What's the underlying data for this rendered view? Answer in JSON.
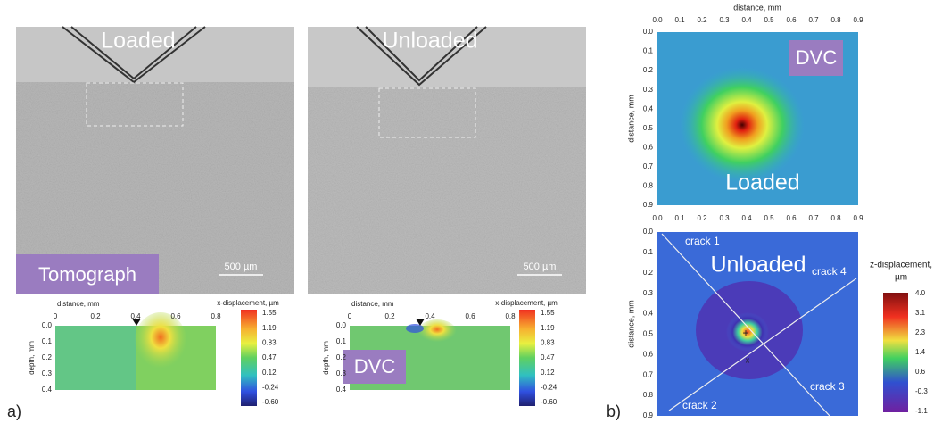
{
  "panel_a": {
    "label": "a)",
    "tomographs": [
      {
        "title": "Loaded",
        "scale_bar": "500 µm"
      },
      {
        "title": "Unloaded",
        "scale_bar": "500 µm"
      }
    ],
    "tomograph_tag": "Tomograph",
    "maps": {
      "x_axis_label": "distance, mm",
      "y_axis_label": "depth, mm",
      "x_ticks": [
        "0",
        "0.2",
        "0.4",
        "0.6",
        "0.8"
      ],
      "y_ticks": [
        "0.0",
        "0.1",
        "0.2",
        "0.3",
        "0.4"
      ],
      "colorbar_title": "x-displacement, µm",
      "colorbar_ticks": [
        "1.55",
        "1.19",
        "0.83",
        "0.47",
        "0.12",
        "-0.24",
        "-0.60"
      ],
      "dvc_tag": "DVC"
    }
  },
  "panel_b": {
    "label": "b)",
    "x_axis_label": "distance, mm",
    "y_axis_label": "distance, mm",
    "ticks": [
      "0.0",
      "0.1",
      "0.2",
      "0.3",
      "0.4",
      "0.5",
      "0.6",
      "0.7",
      "0.8",
      "0.9"
    ],
    "top_map": {
      "tag": "DVC",
      "title": "Loaded"
    },
    "bottom_map": {
      "title": "Unloaded",
      "cracks": [
        "crack 1",
        "crack 2",
        "crack 3",
        "crack 4"
      ]
    },
    "colorbar_title": [
      "z-displacement,",
      "µm"
    ],
    "colorbar_ticks": [
      "4.0",
      "3.1",
      "2.3",
      "1.4",
      "0.6",
      "-0.3",
      "-1.1"
    ]
  }
}
